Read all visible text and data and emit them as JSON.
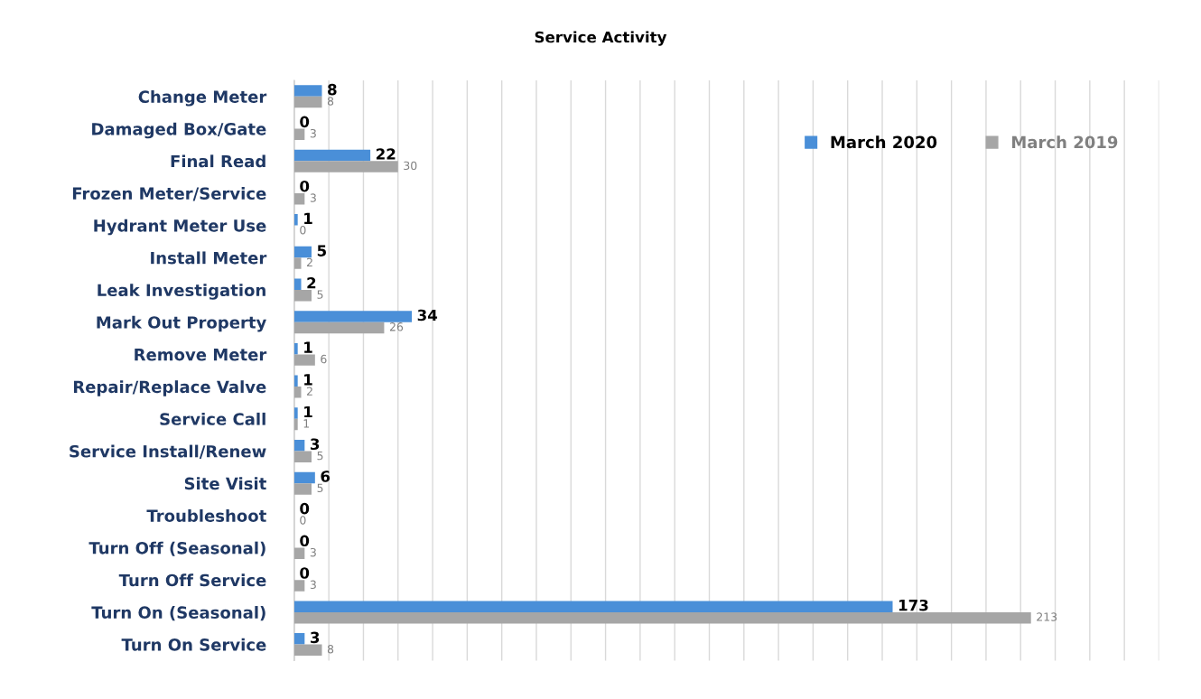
{
  "chart_data": {
    "type": "bar",
    "orientation": "horizontal",
    "title": "Service Activity",
    "categories": [
      "Change Meter",
      "Damaged Box/Gate",
      "Final Read",
      "Frozen Meter/Service",
      "Hydrant Meter Use",
      "Install Meter",
      "Leak Investigation",
      "Mark Out Property",
      "Remove Meter",
      "Repair/Replace Valve",
      "Service Call",
      "Service Install/Renew",
      "Site Visit",
      "Troubleshoot",
      "Turn Off (Seasonal)",
      "Turn Off Service",
      "Turn On (Seasonal)",
      "Turn On Service"
    ],
    "series": [
      {
        "name": "March 2020",
        "color": "#4a8fd8",
        "values": [
          8,
          0,
          22,
          0,
          1,
          5,
          2,
          34,
          1,
          1,
          1,
          3,
          6,
          0,
          0,
          0,
          173,
          3
        ]
      },
      {
        "name": "March 2019",
        "color": "#a6a6a6",
        "values": [
          8,
          3,
          30,
          3,
          0,
          2,
          5,
          26,
          6,
          2,
          1,
          5,
          5,
          0,
          3,
          3,
          213,
          8
        ]
      }
    ],
    "xlim": [
      0,
      250
    ],
    "xticks": [
      0,
      10,
      20,
      30,
      40,
      50,
      60,
      70,
      80,
      90,
      100,
      110,
      120,
      130,
      140,
      150,
      160,
      170,
      180,
      190,
      200,
      210,
      220,
      230,
      240,
      250
    ],
    "tick_labels": "y",
    "grid": "x",
    "legend": "top right",
    "data_labels": true
  }
}
